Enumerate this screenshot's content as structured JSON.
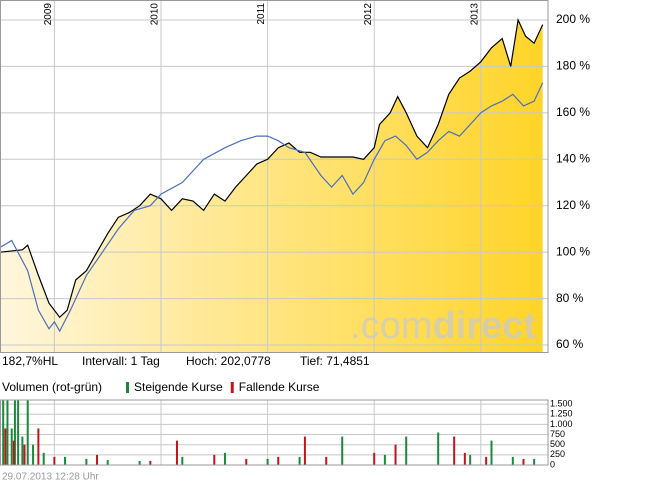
{
  "chart_data": [
    {
      "type": "line",
      "x_unit": "year",
      "xlim": [
        2008.49,
        2013.63
      ],
      "xticks": [
        2009,
        2010,
        2011,
        2012,
        2013
      ],
      "ylim": [
        57,
        208.6
      ],
      "yticks": [
        {
          "value": 60,
          "label": "60 %"
        },
        {
          "value": 80,
          "label": "80 %"
        },
        {
          "value": 100,
          "label": "100 %"
        },
        {
          "value": 120,
          "label": "120 %"
        },
        {
          "value": 140,
          "label": "140 %"
        },
        {
          "value": 160,
          "label": "160 %"
        },
        {
          "value": 180,
          "label": "180 %"
        },
        {
          "value": 200,
          "label": "200 %"
        }
      ],
      "grid": true,
      "fill_gradient": [
        "#fff6dc",
        "#ffd428"
      ],
      "watermark": [
        ".com",
        "direct"
      ],
      "info": [
        "182,7%HL",
        "Intervall: 1 Tag",
        "Hoch: 202,0778",
        "Tief: 71,4851"
      ],
      "series": [
        {
          "color": "#000000",
          "filled": true,
          "x": [
            2008.49,
            2008.7,
            2008.75,
            2008.85,
            2008.95,
            2009.05,
            2009.12,
            2009.2,
            2009.3,
            2009.4,
            2009.5,
            2009.6,
            2009.7,
            2009.8,
            2009.9,
            2010.0,
            2010.1,
            2010.2,
            2010.3,
            2010.4,
            2010.5,
            2010.6,
            2010.7,
            2010.8,
            2010.9,
            2011.0,
            2011.1,
            2011.2,
            2011.3,
            2011.4,
            2011.5,
            2011.6,
            2011.7,
            2011.8,
            2011.9,
            2012.0,
            2012.05,
            2012.15,
            2012.22,
            2012.3,
            2012.4,
            2012.5,
            2012.6,
            2012.7,
            2012.8,
            2012.9,
            2013.0,
            2013.1,
            2013.2,
            2013.28,
            2013.35,
            2013.42,
            2013.5,
            2013.58
          ],
          "values": [
            100,
            101,
            103,
            90,
            78,
            72,
            75,
            88,
            92,
            100,
            108,
            115,
            117,
            120,
            125,
            123,
            118,
            123,
            122,
            118,
            125,
            122,
            128,
            133,
            138,
            140,
            145,
            147,
            143,
            143,
            141,
            141,
            141,
            141,
            140,
            145,
            155,
            160,
            167,
            160,
            150,
            145,
            155,
            168,
            175,
            178,
            182,
            188,
            192,
            180,
            200,
            193,
            190,
            198
          ]
        },
        {
          "color": "#4a6fc0",
          "filled": false,
          "x": [
            2008.49,
            2008.6,
            2008.75,
            2008.85,
            2008.95,
            2009.0,
            2009.05,
            2009.15,
            2009.3,
            2009.45,
            2009.6,
            2009.75,
            2009.9,
            2010.0,
            2010.2,
            2010.4,
            2010.6,
            2010.75,
            2010.9,
            2011.0,
            2011.1,
            2011.2,
            2011.35,
            2011.5,
            2011.6,
            2011.7,
            2011.8,
            2011.9,
            2012.0,
            2012.1,
            2012.2,
            2012.3,
            2012.4,
            2012.5,
            2012.6,
            2012.7,
            2012.8,
            2012.9,
            2013.0,
            2013.1,
            2013.2,
            2013.3,
            2013.4,
            2013.5,
            2013.58
          ],
          "values": [
            102,
            105,
            92,
            75,
            67,
            70,
            66,
            75,
            90,
            100,
            110,
            118,
            120,
            125,
            130,
            140,
            145,
            148,
            150,
            150,
            148,
            145,
            143,
            133,
            128,
            133,
            125,
            130,
            140,
            148,
            150,
            146,
            140,
            143,
            148,
            152,
            150,
            155,
            160,
            163,
            165,
            168,
            163,
            165,
            173
          ]
        }
      ]
    },
    {
      "type": "bar",
      "title": "Volumen (rot-grün)",
      "xlim": [
        2008.49,
        2013.63
      ],
      "xticks": [
        2009,
        2010,
        2011,
        2012,
        2013
      ],
      "ylim": [
        0,
        1600
      ],
      "yticks": [
        0,
        250,
        500,
        750,
        {
          "value": 1000,
          "label": "1.000"
        },
        {
          "value": 1250,
          "label": "1.250"
        },
        {
          "value": 1500,
          "label": "1.500"
        }
      ],
      "footer": "29.07.2013 12:28 Uhr",
      "series": [
        {
          "name": "Steigende Kurse",
          "color": "#1a8a3a",
          "x": [
            2008.52,
            2008.56,
            2008.6,
            2008.63,
            2008.66,
            2008.7,
            2008.75,
            2008.8,
            2008.9,
            2009.1,
            2009.3,
            2009.5,
            2009.8,
            2010.2,
            2010.6,
            2011.0,
            2011.3,
            2011.7,
            2012.1,
            2012.3,
            2012.6,
            2012.9,
            2013.1,
            2013.3,
            2013.5
          ],
          "values": [
            1600,
            1600,
            900,
            1600,
            1600,
            700,
            1600,
            500,
            300,
            200,
            150,
            120,
            100,
            200,
            300,
            150,
            200,
            700,
            250,
            700,
            800,
            250,
            600,
            200,
            150
          ]
        },
        {
          "name": "Fallende Kurse",
          "color": "#c0141e",
          "x": [
            2008.54,
            2008.62,
            2008.72,
            2008.85,
            2009.0,
            2009.4,
            2009.9,
            2010.15,
            2010.5,
            2010.8,
            2011.1,
            2011.35,
            2011.55,
            2012.0,
            2012.2,
            2012.75,
            2012.85,
            2013.05,
            2013.4
          ],
          "values": [
            900,
            600,
            500,
            900,
            200,
            250,
            100,
            600,
            250,
            150,
            200,
            700,
            200,
            300,
            500,
            700,
            300,
            200,
            150
          ]
        }
      ]
    }
  ]
}
